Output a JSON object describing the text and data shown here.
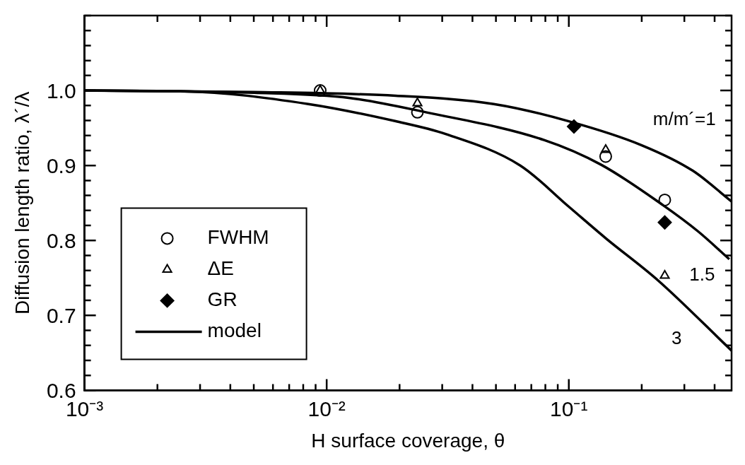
{
  "chart_data": {
    "type": "scatter",
    "xlabel": "H surface coverage, θ",
    "ylabel": "Diffusion length ratio, λ´/λ",
    "log": "x",
    "grid": false,
    "legend": "bottom left",
    "xlim": [
      0.001,
      0.47
    ],
    "ylim": [
      0.6,
      1.1
    ],
    "xticks": [
      {
        "value": 0.001,
        "label": "10⁻³"
      },
      {
        "value": 0.002,
        "label": null
      },
      {
        "value": 0.003,
        "label": null
      },
      {
        "value": 0.004,
        "label": null
      },
      {
        "value": 0.005,
        "label": null
      },
      {
        "value": 0.006,
        "label": null
      },
      {
        "value": 0.007,
        "label": null
      },
      {
        "value": 0.008,
        "label": null
      },
      {
        "value": 0.009,
        "label": null
      },
      {
        "value": 0.01,
        "label": "10⁻²"
      },
      {
        "value": 0.02,
        "label": null
      },
      {
        "value": 0.03,
        "label": null
      },
      {
        "value": 0.04,
        "label": null
      },
      {
        "value": 0.05,
        "label": null
      },
      {
        "value": 0.06,
        "label": null
      },
      {
        "value": 0.07,
        "label": null
      },
      {
        "value": 0.08,
        "label": null
      },
      {
        "value": 0.09,
        "label": null
      },
      {
        "value": 0.1,
        "label": "10⁻¹"
      },
      {
        "value": 0.2,
        "label": null
      },
      {
        "value": 0.3,
        "label": null
      },
      {
        "value": 0.4,
        "label": null
      }
    ],
    "yticks": [
      {
        "value": 0.6,
        "label": "0.6"
      },
      {
        "value": 0.62,
        "label": null
      },
      {
        "value": 0.64,
        "label": null
      },
      {
        "value": 0.66,
        "label": null
      },
      {
        "value": 0.68,
        "label": null
      },
      {
        "value": 0.7,
        "label": "0.7"
      },
      {
        "value": 0.72,
        "label": null
      },
      {
        "value": 0.74,
        "label": null
      },
      {
        "value": 0.76,
        "label": null
      },
      {
        "value": 0.78,
        "label": null
      },
      {
        "value": 0.8,
        "label": "0.8"
      },
      {
        "value": 0.82,
        "label": null
      },
      {
        "value": 0.84,
        "label": null
      },
      {
        "value": 0.86,
        "label": null
      },
      {
        "value": 0.88,
        "label": null
      },
      {
        "value": 0.9,
        "label": "0.9"
      },
      {
        "value": 0.92,
        "label": null
      },
      {
        "value": 0.94,
        "label": null
      },
      {
        "value": 0.96,
        "label": null
      },
      {
        "value": 0.98,
        "label": null
      },
      {
        "value": 1.0,
        "label": "1.0"
      },
      {
        "value": 1.02,
        "label": null
      },
      {
        "value": 1.04,
        "label": null
      },
      {
        "value": 1.06,
        "label": null
      },
      {
        "value": 1.08,
        "label": null
      },
      {
        "value": 1.1,
        "label": null
      }
    ],
    "series": [
      {
        "name": "FWHM",
        "marker": "circle",
        "color": "#000000",
        "x": [
          0.0094,
          0.0237,
          0.142,
          0.249
        ],
        "values": [
          1.0,
          0.971,
          0.912,
          0.854
        ]
      },
      {
        "name": "ΔE",
        "marker": "triangle",
        "color": "#000000",
        "x": [
          0.0094,
          0.0237,
          0.142,
          0.249
        ],
        "values": [
          1.0,
          0.983,
          0.921,
          0.753
        ]
      },
      {
        "name": "GR",
        "marker": "diamond",
        "color": "#000000",
        "x": [
          0.105,
          0.249
        ],
        "values": [
          0.952,
          0.824
        ]
      },
      {
        "name": "model",
        "type": "line",
        "marker": "none",
        "color": "#000000",
        "x": [
          0.001,
          0.005,
          0.0193,
          0.049,
          0.1,
          0.2,
          0.325,
          0.47
        ],
        "values": [
          1.0,
          0.998,
          0.993,
          0.982,
          0.959,
          0.927,
          0.893,
          0.852
        ]
      },
      {
        "type": "line",
        "marker": "none",
        "color": "#000000",
        "x": [
          0.001,
          0.005,
          0.0125,
          0.0257,
          0.079,
          0.136,
          0.245,
          0.342,
          0.46
        ],
        "values": [
          1.0,
          0.997,
          0.99,
          0.971,
          0.934,
          0.901,
          0.847,
          0.812,
          0.775
        ]
      },
      {
        "type": "line",
        "marker": "none",
        "color": "#000000",
        "x": [
          0.001,
          0.0026,
          0.0084,
          0.0193,
          0.031,
          0.063,
          0.1,
          0.142,
          0.233,
          0.47
        ],
        "values": [
          1.0,
          0.999,
          0.982,
          0.959,
          0.942,
          0.9,
          0.845,
          0.803,
          0.747,
          0.653
        ]
      }
    ],
    "annotations": [
      {
        "text": "m/m´=1",
        "x": 0.3,
        "y": 0.9
      },
      {
        "text": "1.5",
        "x": 0.37,
        "y": 0.8
      },
      {
        "text": "3",
        "x": 0.29,
        "y": 0.716
      }
    ]
  }
}
